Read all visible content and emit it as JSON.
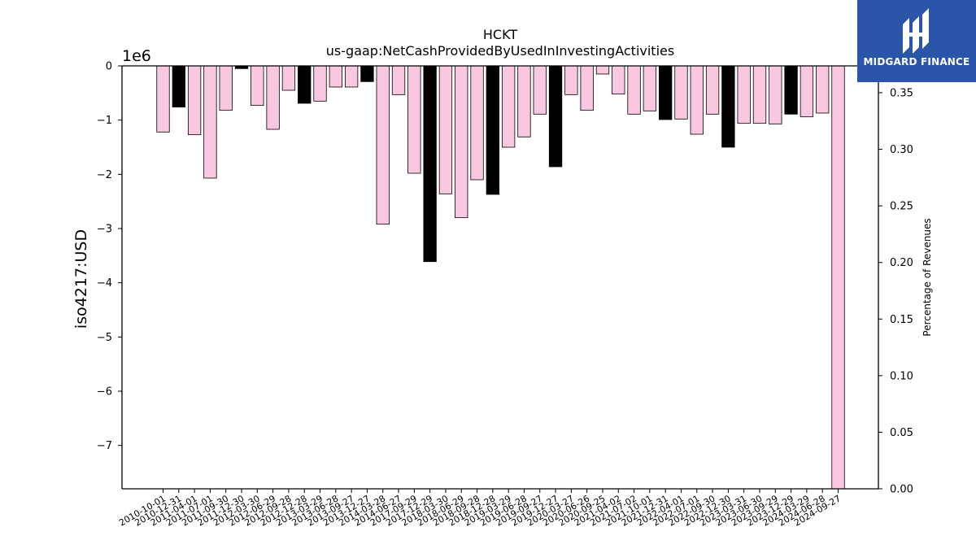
{
  "chart_data": {
    "type": "bar",
    "title": "HCKT",
    "subtitle": "us-gaap:NetCashProvidedByUsedInInvestingActivities",
    "ylabel": "iso4217:USD",
    "y_offset_label": "1e6",
    "right_ylabel": "Percentage of Revenues",
    "ylim": [
      -7.8,
      0
    ],
    "y_ticks": [
      0,
      -1,
      -2,
      -3,
      -4,
      -5,
      -6,
      -7
    ],
    "right_ylim": [
      0,
      0.3737
    ],
    "right_ticks": [
      "0.00",
      "0.05",
      "0.10",
      "0.15",
      "0.20",
      "0.25",
      "0.30",
      "0.35"
    ],
    "colors": {
      "annual": "#000000",
      "quarter": "#f9c8e0"
    },
    "categories": [
      "2010-10-01",
      "2010-12-31",
      "2011-04-01",
      "2011-07-01",
      "2011-09-30",
      "2011-12-30",
      "2012-03-30",
      "2012-06-29",
      "2012-09-28",
      "2012-12-28",
      "2013-03-29",
      "2013-06-28",
      "2013-09-27",
      "2013-12-27",
      "2014-03-28",
      "2014-06-27",
      "2017-09-29",
      "2017-12-29",
      "2018-03-30",
      "2018-06-29",
      "2018-09-28",
      "2018-12-28",
      "2019-03-29",
      "2019-06-28",
      "2019-09-27",
      "2019-12-27",
      "2020-03-27",
      "2020-06-26",
      "2020-09-25",
      "2021-04-02",
      "2021-07-02",
      "2021-10-01",
      "2021-12-31",
      "2022-04-01",
      "2022-07-01",
      "2022-09-30",
      "2022-12-30",
      "2023-03-31",
      "2023-06-30",
      "2023-09-29",
      "2023-12-29",
      "2024-03-29",
      "2024-06-28",
      "2024-09-27"
    ],
    "values": [
      -1.22,
      -0.76,
      -1.27,
      -2.07,
      -0.82,
      -0.05,
      -0.73,
      -1.17,
      -0.45,
      -0.69,
      -0.65,
      -0.39,
      -0.39,
      -0.29,
      -2.92,
      -0.53,
      -1.98,
      -3.61,
      -2.36,
      -2.8,
      -2.1,
      -2.37,
      -1.5,
      -1.31,
      -0.89,
      -1.86,
      -0.53,
      -0.82,
      -0.15,
      -0.52,
      -0.89,
      -0.83,
      -0.99,
      -0.98,
      -1.26,
      -0.89,
      -1.5,
      -1.06,
      -1.06,
      -1.07,
      -0.89,
      -0.94,
      -0.87,
      -7.8
    ],
    "annual_flags": [
      false,
      true,
      false,
      false,
      false,
      true,
      false,
      false,
      false,
      true,
      false,
      false,
      false,
      true,
      false,
      false,
      false,
      true,
      false,
      false,
      false,
      true,
      false,
      false,
      false,
      true,
      false,
      false,
      false,
      false,
      false,
      false,
      true,
      false,
      false,
      false,
      true,
      false,
      false,
      false,
      true,
      false,
      false,
      false
    ]
  },
  "logo": {
    "text": "MIDGARD FINANCE",
    "icon": "midgard-logo-icon"
  }
}
